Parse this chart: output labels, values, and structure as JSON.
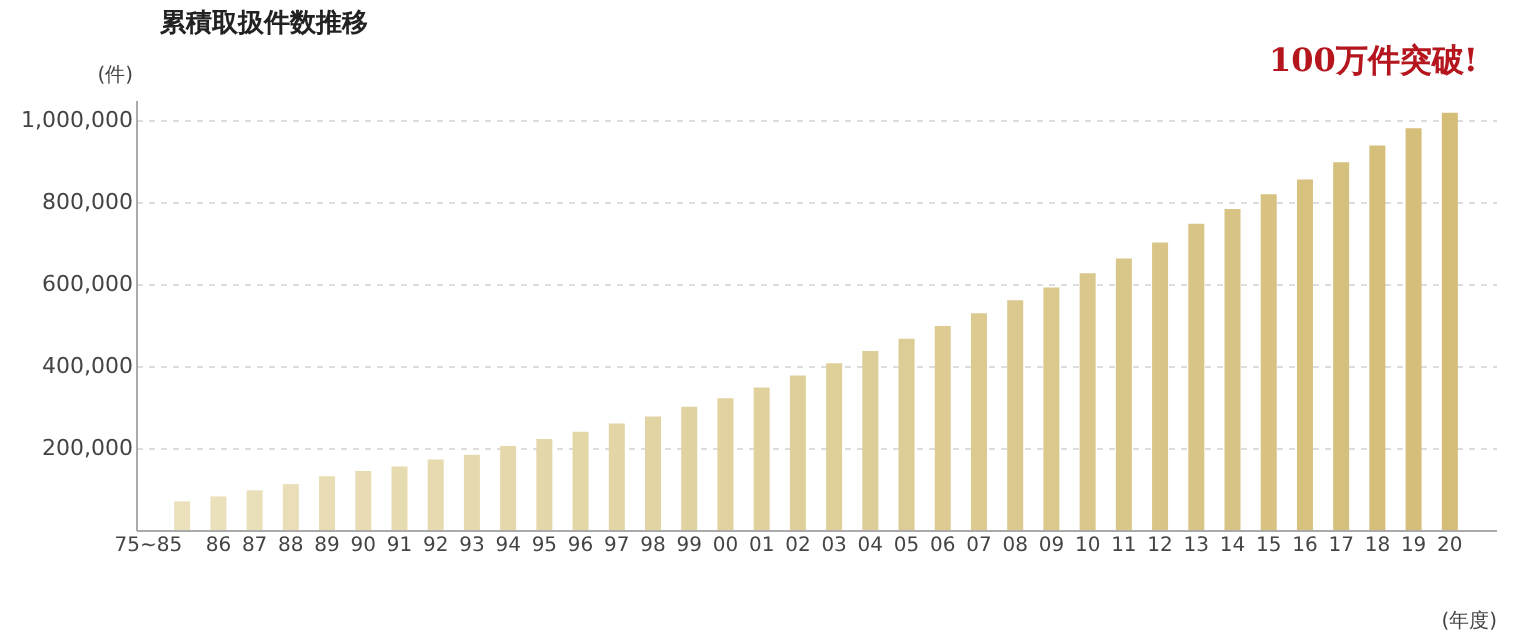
{
  "chart_data": {
    "type": "bar",
    "title": "累積取扱件数推移",
    "ylabel": "(件)",
    "xlabel": "(年度)",
    "categories": [
      "75~85",
      "86",
      "87",
      "88",
      "89",
      "90",
      "91",
      "92",
      "93",
      "94",
      "95",
      "96",
      "97",
      "98",
      "99",
      "00",
      "01",
      "02",
      "03",
      "04",
      "05",
      "06",
      "07",
      "08",
      "09",
      "10",
      "11",
      "12",
      "13",
      "14",
      "15",
      "16",
      "17",
      "18",
      "19",
      "20"
    ],
    "values": [
      70000,
      82000,
      97000,
      112000,
      131000,
      144000,
      155000,
      172000,
      184000,
      205000,
      222000,
      240000,
      260000,
      277000,
      301000,
      322000,
      348000,
      377000,
      407000,
      437000,
      467000,
      498000,
      529000,
      561000,
      592000,
      627000,
      663000,
      702000,
      748000,
      784000,
      820000,
      856000,
      898000,
      939000,
      981000,
      1019000
    ],
    "colors": [
      "#ebe1bd",
      "#eae0bb",
      "#e9dfb9",
      "#e9deb7",
      "#e8ddb5",
      "#e7dcb3",
      "#e7dbb1",
      "#e6daaf",
      "#e5d9ad",
      "#e5d8ab",
      "#e4d7a9",
      "#e3d6a7",
      "#e3d5a5",
      "#e2d4a3",
      "#e1d3a1",
      "#e1d29f",
      "#e0d19d",
      "#dfd09b",
      "#dfcf99",
      "#decd97",
      "#ddcc95",
      "#ddcb93",
      "#dcca91",
      "#dbc98f",
      "#dbc88d",
      "#dac78b",
      "#d9c689",
      "#d9c587",
      "#d8c485",
      "#d7c383",
      "#d7c281",
      "#d6c17f",
      "#d5c07d",
      "#d5bf7b",
      "#d4be79",
      "#d3bd77"
    ],
    "ylim": [
      0,
      1050000
    ],
    "yticks": [
      {
        "value": 200000,
        "label": "200,000"
      },
      {
        "value": 400000,
        "label": "400,000"
      },
      {
        "value": 600000,
        "label": "600,000"
      },
      {
        "value": 800000,
        "label": "800,000"
      },
      {
        "value": 1000000,
        "label": "1,000,000"
      }
    ],
    "grid": "y",
    "annotations": [
      {
        "text": "100万件突破!",
        "x": "20",
        "y": 1019000
      }
    ]
  }
}
